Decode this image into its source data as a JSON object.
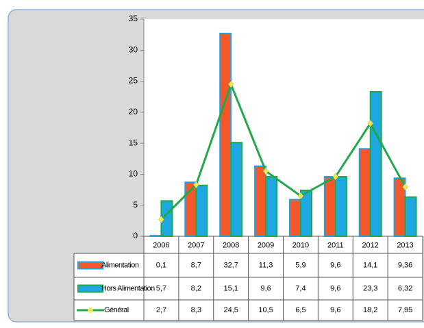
{
  "chart_data": {
    "type": "bar_line",
    "categories": [
      "2006",
      "2007",
      "2008",
      "2009",
      "2010",
      "2011",
      "2012",
      "2013"
    ],
    "series": [
      {
        "name": "Alimentation",
        "type": "bar",
        "color": "#f4582a",
        "edge_color": "#1ea3e3",
        "values": [
          0.1,
          8.7,
          32.7,
          11.3,
          5.9,
          9.6,
          14.1,
          9.36
        ],
        "value_labels": [
          "0,1",
          "8,7",
          "32,7",
          "11,3",
          "5,9",
          "9,6",
          "14,1",
          "9,36"
        ]
      },
      {
        "name": "Hors Alimentation",
        "type": "bar",
        "color": "#1ea8e2",
        "edge_color": "#1ca84c",
        "values": [
          5.7,
          8.2,
          15.1,
          9.6,
          7.4,
          9.6,
          23.3,
          6.32
        ],
        "value_labels": [
          "5,7",
          "8,2",
          "15,1",
          "9,6",
          "7,4",
          "9,6",
          "23,3",
          "6,32"
        ]
      },
      {
        "name": "Général",
        "type": "line",
        "color": "#22a84a",
        "marker_color": "#f5e94a",
        "values": [
          2.7,
          8.3,
          24.5,
          10.5,
          6.5,
          9.6,
          18.2,
          7.95
        ],
        "value_labels": [
          "2,7",
          "8,3",
          "24,5",
          "10,5",
          "6,5",
          "9,6",
          "18,2",
          "7,95"
        ]
      }
    ],
    "ylim": [
      0,
      35
    ],
    "yticks": [
      0,
      5,
      10,
      15,
      20,
      25,
      30,
      35
    ],
    "grid": false
  }
}
